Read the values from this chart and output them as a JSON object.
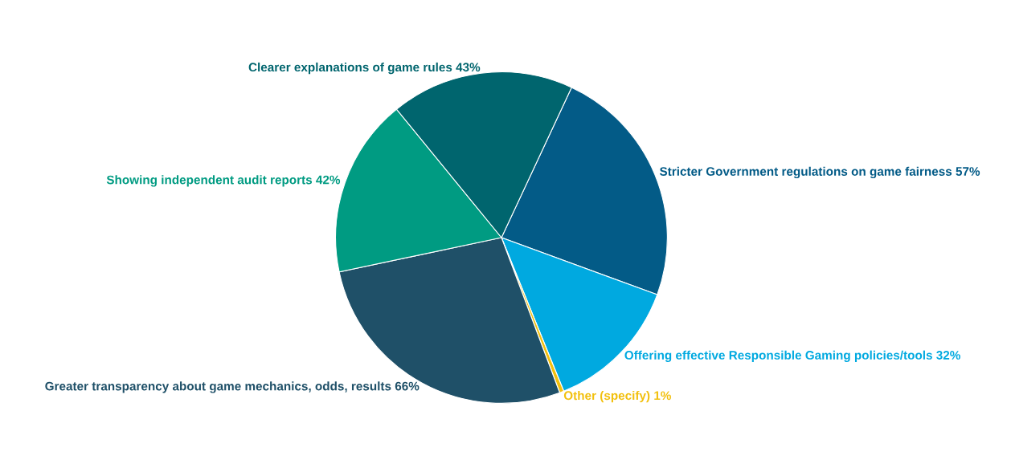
{
  "chart_data": {
    "type": "pie",
    "categories": [
      "Stricter Government regulations on game fairness",
      "Offering effective Responsible Gaming policies/tools",
      "Other (specify)",
      "Greater transparency about game mechanics, odds, results",
      "Showing independent audit reports",
      "Clearer explanations of game rules"
    ],
    "values": [
      57,
      32,
      1,
      66,
      42,
      43
    ],
    "value_labels": [
      "57%",
      "32%",
      "1%",
      "66%",
      "42%",
      "43%"
    ],
    "colors": [
      "#035b87",
      "#00a9e0",
      "#f2c00e",
      "#1f5068",
      "#009b82",
      "#00656e"
    ]
  }
}
